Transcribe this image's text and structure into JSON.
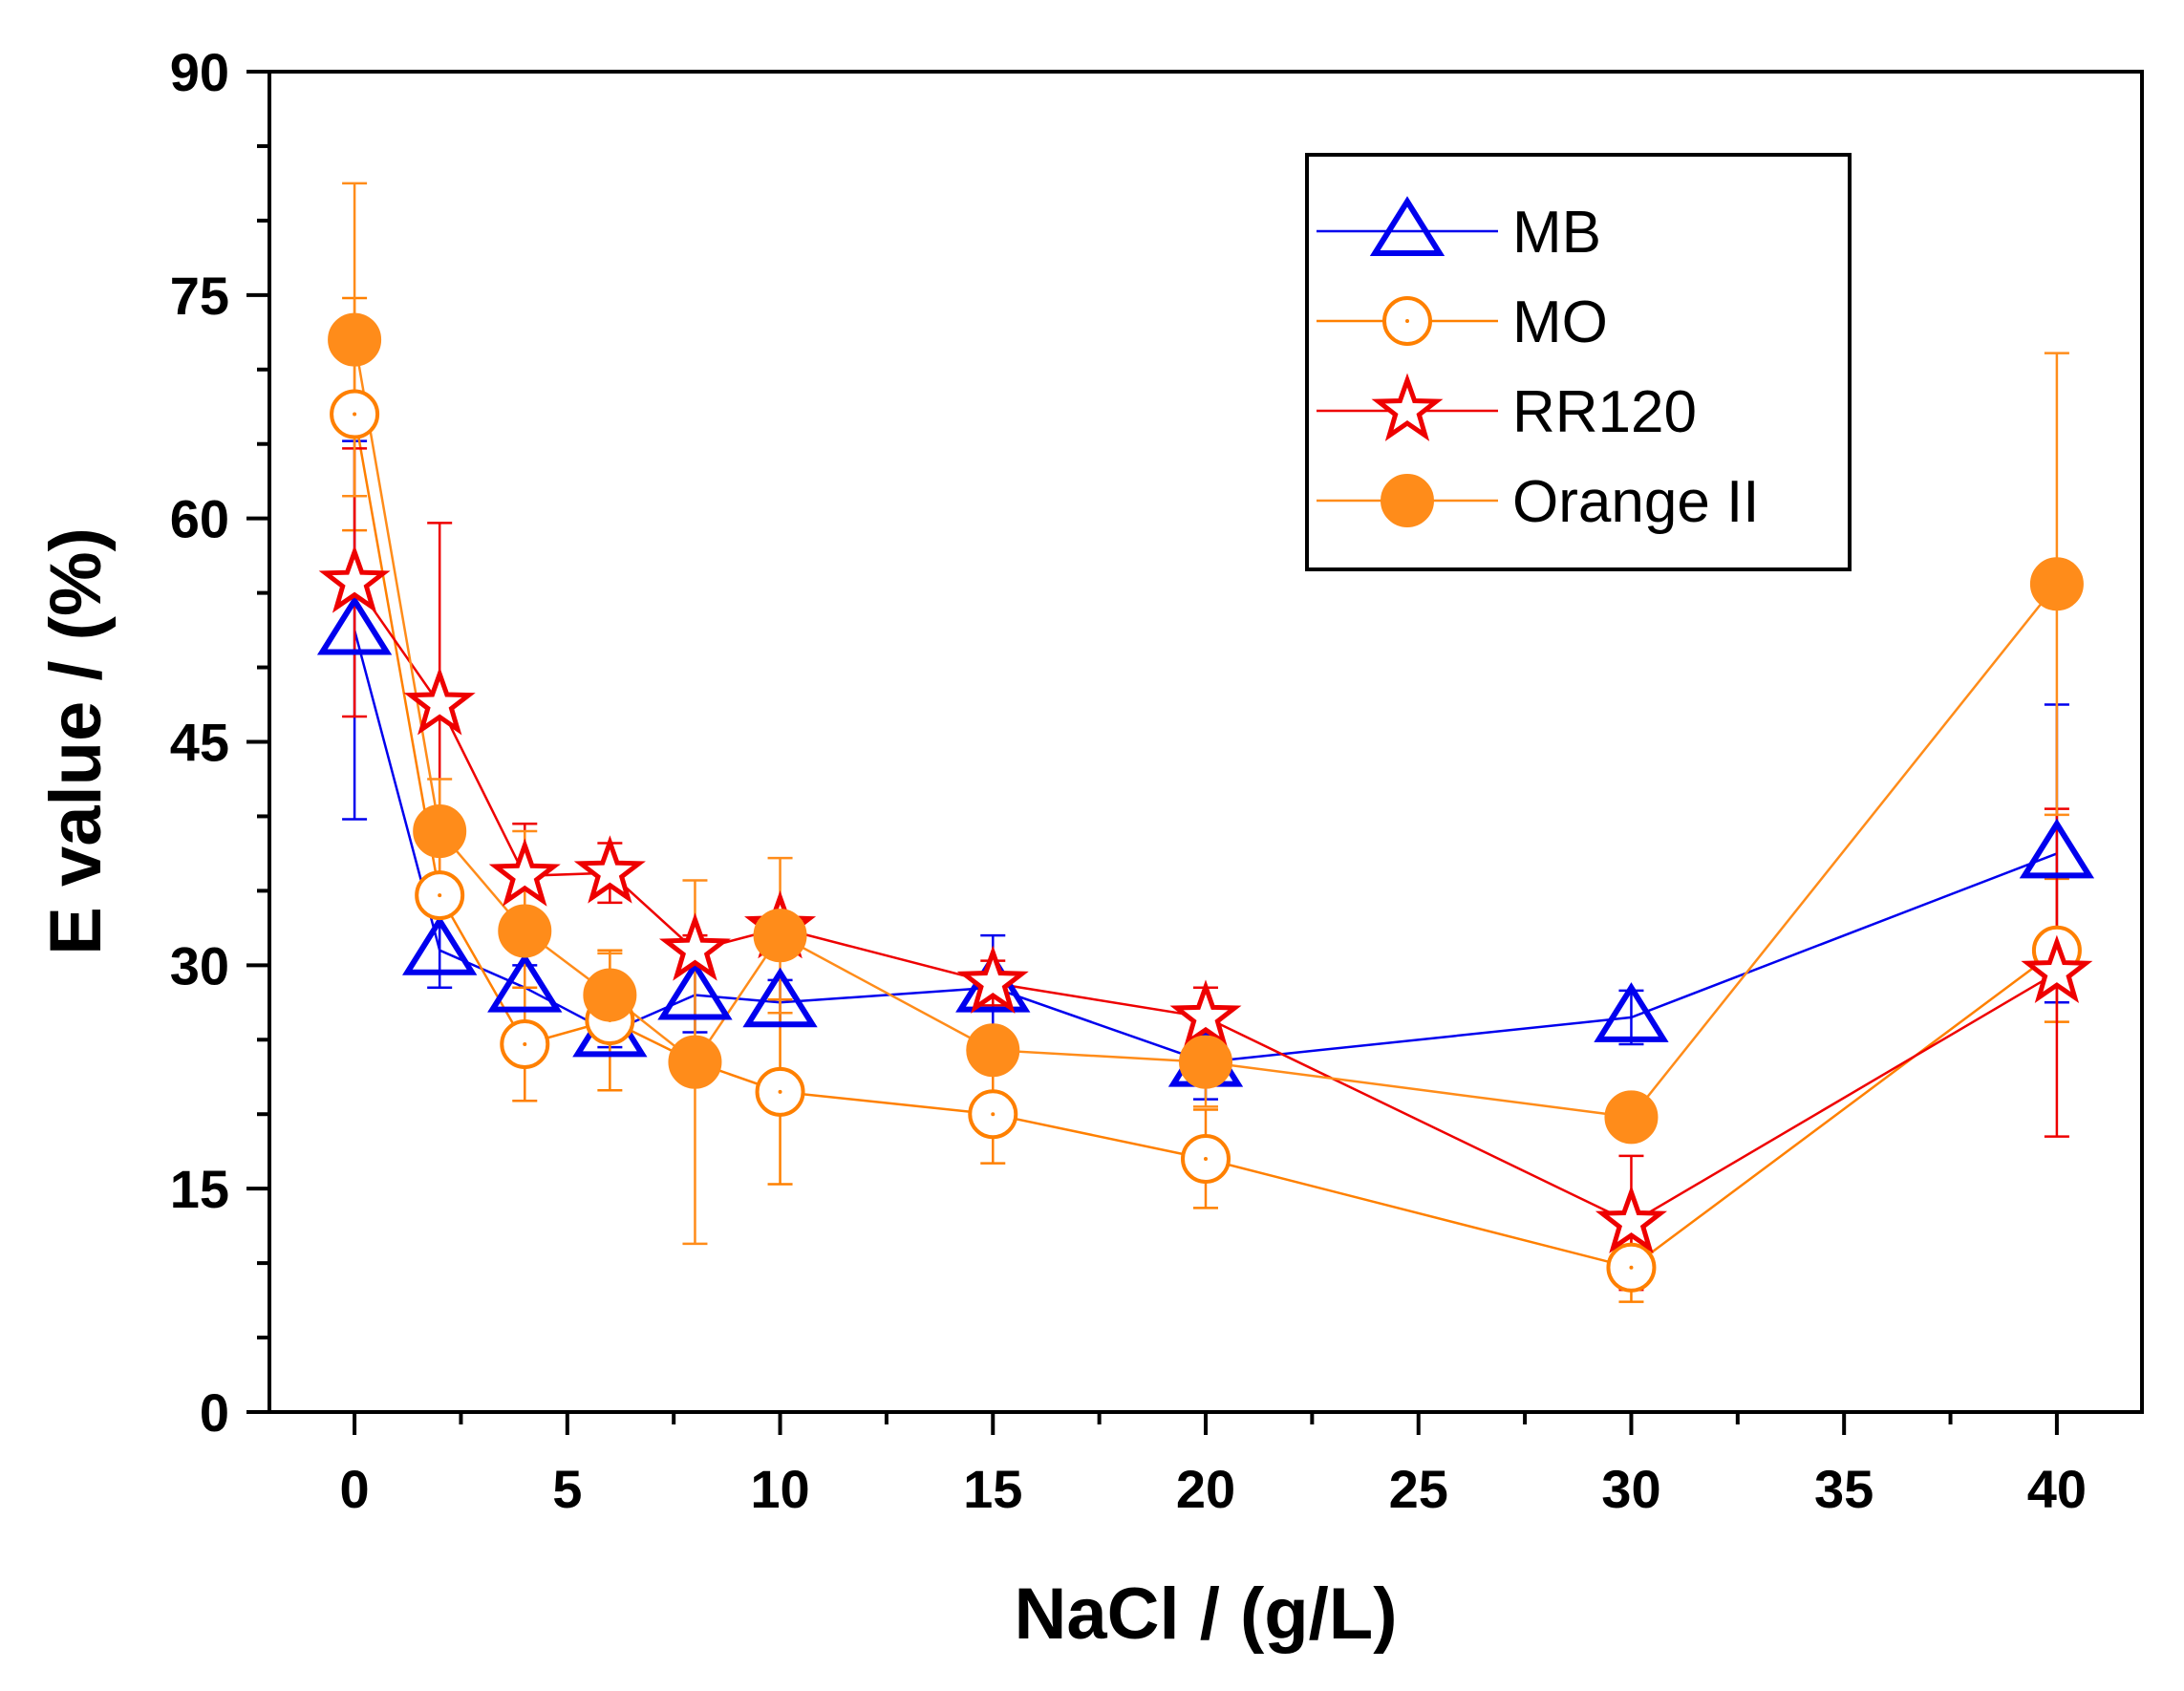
{
  "chart_data": {
    "type": "scatter",
    "xlabel": "NaCl / (g/L)",
    "ylabel": "E value / (%)",
    "xlim": [
      -2,
      42
    ],
    "ylim": [
      0,
      90
    ],
    "x_ticks": [
      0,
      5,
      10,
      15,
      20,
      25,
      30,
      35,
      40
    ],
    "y_ticks": [
      0,
      15,
      30,
      45,
      60,
      75,
      90
    ],
    "legend_position": "top-right",
    "series": [
      {
        "name": "MB",
        "color": "#0000ee",
        "marker": "open-triangle",
        "x": [
          0,
          2,
          4,
          6,
          8,
          10,
          15,
          20,
          30,
          40
        ],
        "y": [
          52.5,
          31,
          28.5,
          25.5,
          28,
          27.5,
          28.5,
          23.5,
          26.5,
          37.5
        ],
        "err": [
          12.7,
          2.5,
          1.5,
          1.0,
          2.5,
          1.5,
          3.5,
          2.5,
          1.8,
          10.0
        ]
      },
      {
        "name": "MO",
        "color": "#ff8000",
        "marker": "open-circle",
        "x": [
          0,
          2,
          4,
          6,
          8,
          10,
          15,
          20,
          30,
          40
        ],
        "y": [
          67,
          34.7,
          24.7,
          26.3,
          23.5,
          21.5,
          20,
          17,
          9.7,
          31
        ],
        "err": [
          7.8,
          0.8,
          3.8,
          4.7,
          1.0,
          6.2,
          3.3,
          3.3,
          2.3,
          4.8
        ]
      },
      {
        "name": "RR120",
        "color": "#ee0000",
        "marker": "open-star",
        "x": [
          0,
          2,
          4,
          6,
          8,
          10,
          15,
          20,
          30,
          40
        ],
        "y": [
          55.7,
          47.5,
          36,
          36.2,
          31,
          32.5,
          28.8,
          26.5,
          12.7,
          29.5
        ],
        "err": [
          9.0,
          12.2,
          3.5,
          2.0,
          1.0,
          1.0,
          1.5,
          2.0,
          4.5,
          11.0
        ]
      },
      {
        "name": "Orange II",
        "color": "#ff8c1a",
        "marker": "filled-circle",
        "x": [
          0,
          2,
          4,
          6,
          8,
          10,
          15,
          20,
          30,
          40
        ],
        "y": [
          72,
          39,
          32.3,
          28,
          23.5,
          32,
          24.3,
          23.5,
          19.8,
          55.6
        ],
        "err": [
          10.5,
          3.5,
          6.7,
          2.8,
          12.2,
          5.2,
          1.0,
          3.0,
          1.2,
          15.5
        ]
      }
    ]
  }
}
